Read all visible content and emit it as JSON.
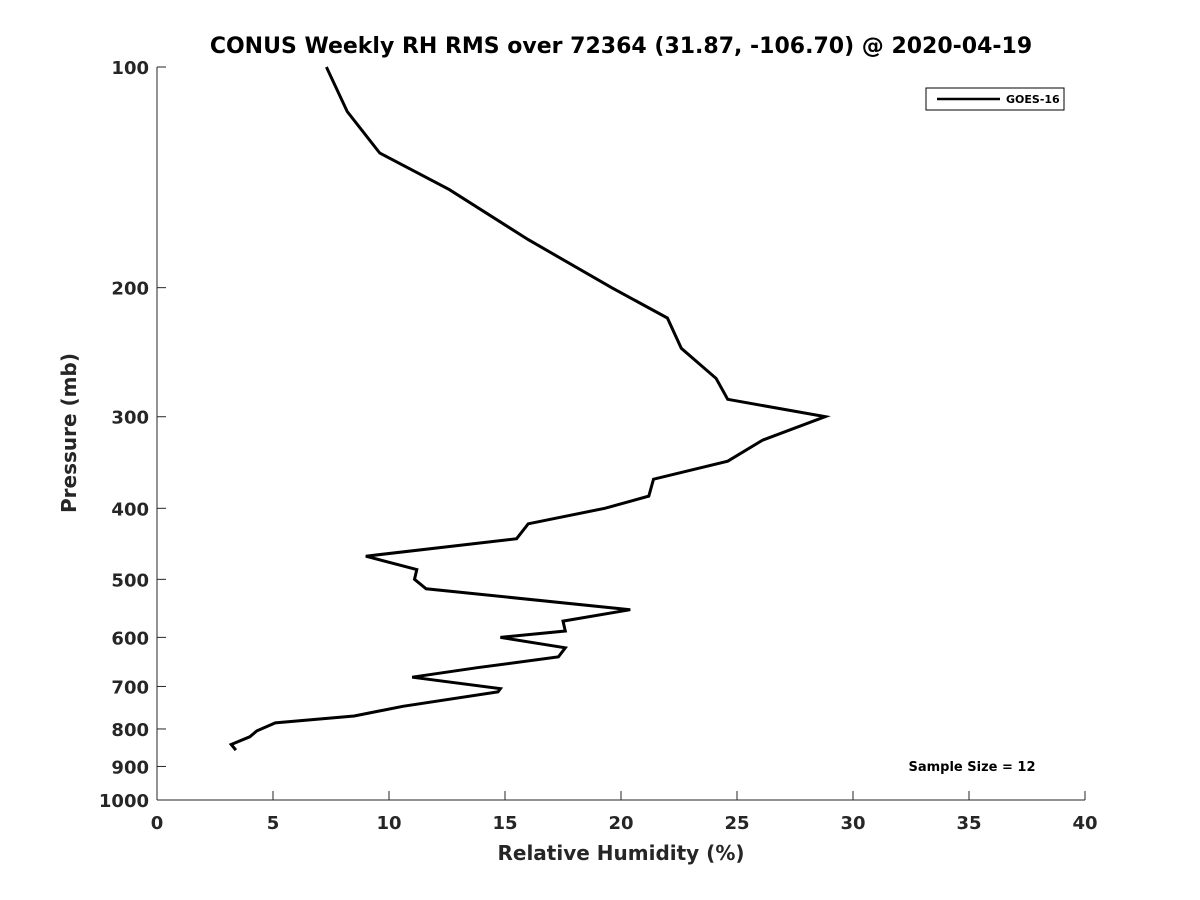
{
  "chart_data": {
    "type": "line",
    "title": "CONUS Weekly RH RMS over 72364 (31.87, -106.70) @ 2020-04-19",
    "xlabel": "Relative Humidity (%)",
    "ylabel": "Pressure (mb)",
    "xlim": [
      0,
      40
    ],
    "ylim": [
      1000,
      100
    ],
    "yscale": "log",
    "y_reversed": true,
    "grid": false,
    "x_ticks": [
      0,
      5,
      10,
      15,
      20,
      25,
      30,
      35,
      40
    ],
    "y_ticks": [
      100,
      200,
      300,
      400,
      500,
      600,
      700,
      800,
      900,
      1000
    ],
    "legend_position": "top-right",
    "annotation": "Sample Size = 12",
    "series": [
      {
        "name": "GOES-16",
        "color": "#000000",
        "x": [
          7.3,
          8.2,
          9.6,
          12.6,
          16.0,
          19.6,
          22.0,
          22.6,
          24.1,
          24.6,
          28.8,
          26.1,
          24.6,
          21.4,
          21.2,
          19.3,
          16.0,
          15.5,
          9.0,
          11.2,
          11.1,
          11.6,
          20.4,
          17.5,
          17.6,
          14.8,
          17.6,
          17.3,
          13.8,
          11.0,
          14.8,
          14.7,
          10.6,
          8.5,
          5.1,
          4.3,
          4.0,
          3.2,
          3.4
        ],
        "y": [
          100,
          115,
          131,
          147,
          172,
          200,
          220,
          242,
          266,
          284,
          300,
          323,
          345,
          365,
          385,
          400,
          420,
          440,
          465,
          485,
          500,
          515,
          550,
          570,
          588,
          600,
          620,
          638,
          660,
          680,
          705,
          712,
          745,
          768,
          785,
          805,
          820,
          840,
          855
        ]
      }
    ]
  }
}
